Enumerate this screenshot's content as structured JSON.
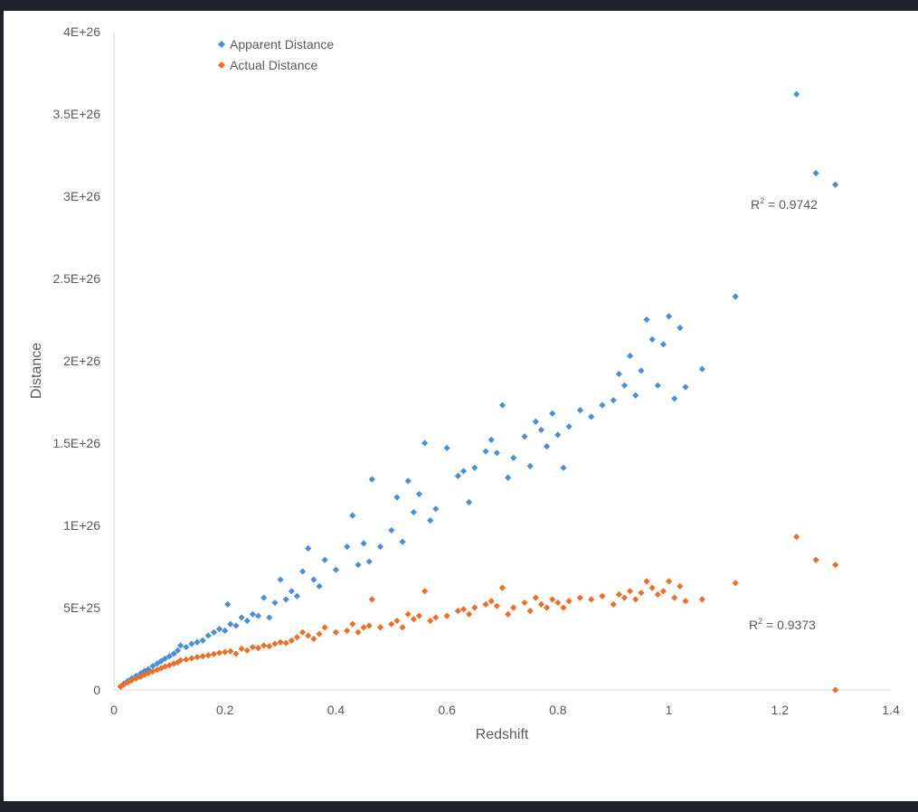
{
  "chart_data": {
    "type": "scatter",
    "title": "",
    "xlabel": "Redshift",
    "ylabel": "Distance",
    "xlim": [
      0,
      1.4
    ],
    "ylim": [
      0,
      4e+26
    ],
    "x_ticks": [
      {
        "value": 0,
        "label": "0"
      },
      {
        "value": 0.2,
        "label": "0.2"
      },
      {
        "value": 0.4,
        "label": "0.4"
      },
      {
        "value": 0.6,
        "label": "0.6"
      },
      {
        "value": 0.8,
        "label": "0.8"
      },
      {
        "value": 1.0,
        "label": "1"
      },
      {
        "value": 1.2,
        "label": "1.2"
      },
      {
        "value": 1.4,
        "label": "1.4"
      }
    ],
    "y_ticks": [
      {
        "value": 0,
        "label": "0"
      },
      {
        "value": 5e+25,
        "label": "5E+25"
      },
      {
        "value": 1e+26,
        "label": "1E+26"
      },
      {
        "value": 1.5e+26,
        "label": "1.5E+26"
      },
      {
        "value": 2e+26,
        "label": "2E+26"
      },
      {
        "value": 2.5e+26,
        "label": "2.5E+26"
      },
      {
        "value": 3e+26,
        "label": "3E+26"
      },
      {
        "value": 3.5e+26,
        "label": "3.5E+26"
      },
      {
        "value": 4e+26,
        "label": "4E+26"
      }
    ],
    "grid": false,
    "legend_position": "top-left",
    "series": [
      {
        "name": "Apparent Distance",
        "color": "#4a8fd6",
        "r2_prefix": "R",
        "r2_sup": "2",
        "r2_value": " = 0.9742",
        "points": [
          [
            0.012,
            2.2e+24
          ],
          [
            0.018,
            3.8e+24
          ],
          [
            0.025,
            5.5e+24
          ],
          [
            0.032,
            7e+24
          ],
          [
            0.04,
            8.5e+24
          ],
          [
            0.048,
            1e+25
          ],
          [
            0.055,
            1.15e+25
          ],
          [
            0.062,
            1.25e+25
          ],
          [
            0.07,
            1.45e+25
          ],
          [
            0.078,
            1.6e+25
          ],
          [
            0.085,
            1.75e+25
          ],
          [
            0.092,
            1.9e+25
          ],
          [
            0.1,
            2.05e+25
          ],
          [
            0.108,
            2.2e+25
          ],
          [
            0.115,
            2.4e+25
          ],
          [
            0.12,
            2.7e+25
          ],
          [
            0.13,
            2.6e+25
          ],
          [
            0.14,
            2.8e+25
          ],
          [
            0.15,
            2.9e+25
          ],
          [
            0.16,
            3e+25
          ],
          [
            0.17,
            3.3e+25
          ],
          [
            0.18,
            3.5e+25
          ],
          [
            0.19,
            3.7e+25
          ],
          [
            0.2,
            3.6e+25
          ],
          [
            0.205,
            5.2e+25
          ],
          [
            0.21,
            4e+25
          ],
          [
            0.22,
            3.9e+25
          ],
          [
            0.23,
            4.4e+25
          ],
          [
            0.24,
            4.2e+25
          ],
          [
            0.25,
            4.6e+25
          ],
          [
            0.26,
            4.5e+25
          ],
          [
            0.27,
            5.6e+25
          ],
          [
            0.28,
            4.4e+25
          ],
          [
            0.29,
            5.3e+25
          ],
          [
            0.3,
            6.7e+25
          ],
          [
            0.31,
            5.5e+25
          ],
          [
            0.32,
            6e+25
          ],
          [
            0.33,
            5.7e+25
          ],
          [
            0.34,
            7.2e+25
          ],
          [
            0.35,
            8.6e+25
          ],
          [
            0.36,
            6.7e+25
          ],
          [
            0.37,
            6.3e+25
          ],
          [
            0.38,
            7.9e+25
          ],
          [
            0.4,
            7.3e+25
          ],
          [
            0.42,
            8.7e+25
          ],
          [
            0.43,
            1.06e+26
          ],
          [
            0.44,
            7.6e+25
          ],
          [
            0.45,
            8.9e+25
          ],
          [
            0.46,
            7.8e+25
          ],
          [
            0.465,
            1.28e+26
          ],
          [
            0.48,
            8.7e+25
          ],
          [
            0.5,
            9.7e+25
          ],
          [
            0.51,
            1.17e+26
          ],
          [
            0.52,
            9e+25
          ],
          [
            0.53,
            1.27e+26
          ],
          [
            0.54,
            1.08e+26
          ],
          [
            0.55,
            1.19e+26
          ],
          [
            0.56,
            1.5e+26
          ],
          [
            0.57,
            1.03e+26
          ],
          [
            0.58,
            1.1e+26
          ],
          [
            0.6,
            1.47e+26
          ],
          [
            0.62,
            1.3e+26
          ],
          [
            0.63,
            1.33e+26
          ],
          [
            0.64,
            1.14e+26
          ],
          [
            0.65,
            1.35e+26
          ],
          [
            0.67,
            1.45e+26
          ],
          [
            0.68,
            1.52e+26
          ],
          [
            0.69,
            1.44e+26
          ],
          [
            0.7,
            1.73e+26
          ],
          [
            0.71,
            1.29e+26
          ],
          [
            0.72,
            1.41e+26
          ],
          [
            0.74,
            1.54e+26
          ],
          [
            0.75,
            1.36e+26
          ],
          [
            0.76,
            1.63e+26
          ],
          [
            0.77,
            1.58e+26
          ],
          [
            0.78,
            1.48e+26
          ],
          [
            0.79,
            1.68e+26
          ],
          [
            0.8,
            1.55e+26
          ],
          [
            0.81,
            1.35e+26
          ],
          [
            0.82,
            1.6e+26
          ],
          [
            0.84,
            1.7e+26
          ],
          [
            0.86,
            1.66e+26
          ],
          [
            0.88,
            1.73e+26
          ],
          [
            0.9,
            1.76e+26
          ],
          [
            0.91,
            1.92e+26
          ],
          [
            0.92,
            1.85e+26
          ],
          [
            0.93,
            2.03e+26
          ],
          [
            0.94,
            1.79e+26
          ],
          [
            0.95,
            1.94e+26
          ],
          [
            0.96,
            2.25e+26
          ],
          [
            0.97,
            2.13e+26
          ],
          [
            0.98,
            1.85e+26
          ],
          [
            0.99,
            2.1e+26
          ],
          [
            1.0,
            2.27e+26
          ],
          [
            1.01,
            1.77e+26
          ],
          [
            1.02,
            2.2e+26
          ],
          [
            1.03,
            1.84e+26
          ],
          [
            1.06,
            1.95e+26
          ],
          [
            1.12,
            2.39e+26
          ],
          [
            1.23,
            3.62e+26
          ],
          [
            1.265,
            3.14e+26
          ],
          [
            1.3,
            3.07e+26
          ]
        ]
      },
      {
        "name": "Actual Distance",
        "color": "#e8702a",
        "r2_prefix": "R",
        "r2_sup": "2",
        "r2_value": " = 0.9373",
        "points": [
          [
            0.012,
            2e+24
          ],
          [
            0.018,
            3.2e+24
          ],
          [
            0.025,
            4.5e+24
          ],
          [
            0.032,
            5.8e+24
          ],
          [
            0.04,
            7e+24
          ],
          [
            0.048,
            8e+24
          ],
          [
            0.055,
            9.2e+24
          ],
          [
            0.062,
            1.02e+25
          ],
          [
            0.07,
            1.12e+25
          ],
          [
            0.078,
            1.22e+25
          ],
          [
            0.085,
            1.32e+25
          ],
          [
            0.092,
            1.42e+25
          ],
          [
            0.1,
            1.5e+25
          ],
          [
            0.108,
            1.6e+25
          ],
          [
            0.115,
            1.68e+25
          ],
          [
            0.12,
            1.8e+25
          ],
          [
            0.13,
            1.85e+25
          ],
          [
            0.14,
            1.92e+25
          ],
          [
            0.15,
            2e+25
          ],
          [
            0.16,
            2.05e+25
          ],
          [
            0.17,
            2.1e+25
          ],
          [
            0.18,
            2.18e+25
          ],
          [
            0.19,
            2.25e+25
          ],
          [
            0.2,
            2.3e+25
          ],
          [
            0.21,
            2.35e+25
          ],
          [
            0.22,
            2.2e+25
          ],
          [
            0.23,
            2.5e+25
          ],
          [
            0.24,
            2.4e+25
          ],
          [
            0.25,
            2.6e+25
          ],
          [
            0.26,
            2.55e+25
          ],
          [
            0.27,
            2.7e+25
          ],
          [
            0.28,
            2.65e+25
          ],
          [
            0.29,
            2.8e+25
          ],
          [
            0.3,
            2.9e+25
          ],
          [
            0.31,
            2.85e+25
          ],
          [
            0.32,
            3e+25
          ],
          [
            0.33,
            3.2e+25
          ],
          [
            0.34,
            3.5e+25
          ],
          [
            0.35,
            3.3e+25
          ],
          [
            0.36,
            3.1e+25
          ],
          [
            0.37,
            3.4e+25
          ],
          [
            0.38,
            3.8e+25
          ],
          [
            0.4,
            3.5e+25
          ],
          [
            0.42,
            3.6e+25
          ],
          [
            0.43,
            4e+25
          ],
          [
            0.44,
            3.5e+25
          ],
          [
            0.45,
            3.8e+25
          ],
          [
            0.46,
            3.9e+25
          ],
          [
            0.465,
            5.5e+25
          ],
          [
            0.48,
            3.8e+25
          ],
          [
            0.5,
            4e+25
          ],
          [
            0.51,
            4.2e+25
          ],
          [
            0.52,
            3.8e+25
          ],
          [
            0.53,
            4.6e+25
          ],
          [
            0.54,
            4.3e+25
          ],
          [
            0.55,
            4.5e+25
          ],
          [
            0.56,
            6e+25
          ],
          [
            0.57,
            4.2e+25
          ],
          [
            0.58,
            4.4e+25
          ],
          [
            0.6,
            4.5e+25
          ],
          [
            0.62,
            4.8e+25
          ],
          [
            0.63,
            4.9e+25
          ],
          [
            0.64,
            4.6e+25
          ],
          [
            0.65,
            5e+25
          ],
          [
            0.67,
            5.2e+25
          ],
          [
            0.68,
            5.4e+25
          ],
          [
            0.69,
            5.1e+25
          ],
          [
            0.7,
            6.2e+25
          ],
          [
            0.71,
            4.6e+25
          ],
          [
            0.72,
            5e+25
          ],
          [
            0.74,
            5.3e+25
          ],
          [
            0.75,
            4.8e+25
          ],
          [
            0.76,
            5.6e+25
          ],
          [
            0.77,
            5.2e+25
          ],
          [
            0.78,
            5e+25
          ],
          [
            0.79,
            5.5e+25
          ],
          [
            0.8,
            5.3e+25
          ],
          [
            0.81,
            5e+25
          ],
          [
            0.82,
            5.4e+25
          ],
          [
            0.84,
            5.6e+25
          ],
          [
            0.86,
            5.5e+25
          ],
          [
            0.88,
            5.7e+25
          ],
          [
            0.9,
            5.2e+25
          ],
          [
            0.91,
            5.8e+25
          ],
          [
            0.92,
            5.6e+25
          ],
          [
            0.93,
            6e+25
          ],
          [
            0.94,
            5.5e+25
          ],
          [
            0.95,
            5.9e+25
          ],
          [
            0.96,
            6.6e+25
          ],
          [
            0.97,
            6.2e+25
          ],
          [
            0.98,
            5.8e+25
          ],
          [
            0.99,
            6e+25
          ],
          [
            1.0,
            6.6e+25
          ],
          [
            1.01,
            5.6e+25
          ],
          [
            1.02,
            6.3e+25
          ],
          [
            1.03,
            5.4e+25
          ],
          [
            1.06,
            5.5e+25
          ],
          [
            1.12,
            6.5e+25
          ],
          [
            1.23,
            9.3e+25
          ],
          [
            1.265,
            7.9e+25
          ],
          [
            1.3,
            7.6e+25
          ],
          [
            1.3,
            0
          ]
        ]
      }
    ]
  }
}
